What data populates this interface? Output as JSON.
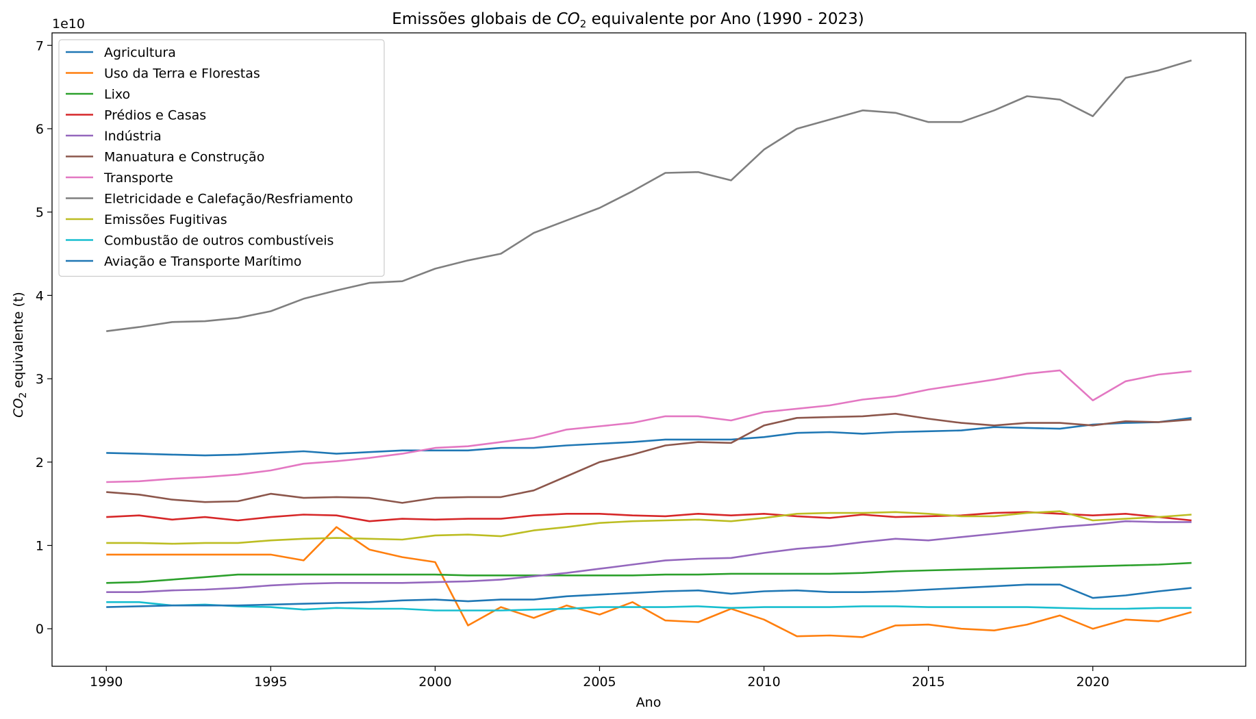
{
  "chart_data": {
    "type": "line",
    "title": "Emissões globais de CO₂ equivalente por Ano (1990 - 2023)",
    "xlabel": "Ano",
    "ylabel": "CO₂ equivalente (t)",
    "y_offset_label": "1e10",
    "xlim": [
      1988.35,
      2024.65
    ],
    "ylim": [
      -0.45,
      7.15
    ],
    "x_ticks": [
      1990,
      1995,
      2000,
      2005,
      2010,
      2015,
      2020
    ],
    "y_ticks": [
      0,
      1,
      2,
      3,
      4,
      5,
      6,
      7
    ],
    "grid": false,
    "legend_position": "upper-left",
    "x": [
      1990,
      1991,
      1992,
      1993,
      1994,
      1995,
      1996,
      1997,
      1998,
      1999,
      2000,
      2001,
      2002,
      2003,
      2004,
      2005,
      2006,
      2007,
      2008,
      2009,
      2010,
      2011,
      2012,
      2013,
      2014,
      2015,
      2016,
      2017,
      2018,
      2019,
      2020,
      2021,
      2022,
      2023
    ],
    "series": [
      {
        "name": "Agricultura",
        "color": "#1f77b4",
        "values": [
          2.11,
          2.1,
          2.09,
          2.08,
          2.09,
          2.11,
          2.13,
          2.1,
          2.12,
          2.14,
          2.14,
          2.14,
          2.17,
          2.17,
          2.2,
          2.22,
          2.24,
          2.27,
          2.27,
          2.27,
          2.3,
          2.35,
          2.36,
          2.34,
          2.36,
          2.37,
          2.38,
          2.42,
          2.41,
          2.4,
          2.45,
          2.47,
          2.48,
          2.53
        ]
      },
      {
        "name": "Uso da Terra e Florestas",
        "color": "#ff7f0e",
        "values": [
          0.89,
          0.89,
          0.89,
          0.89,
          0.89,
          0.89,
          0.82,
          1.22,
          0.95,
          0.86,
          0.8,
          0.04,
          0.26,
          0.13,
          0.28,
          0.17,
          0.32,
          0.1,
          0.08,
          0.24,
          0.11,
          -0.09,
          -0.08,
          -0.1,
          0.04,
          0.05,
          0.0,
          -0.02,
          0.05,
          0.16,
          0.0,
          0.11,
          0.09,
          0.2
        ]
      },
      {
        "name": "Lixo",
        "color": "#2ca02c",
        "values": [
          0.55,
          0.56,
          0.59,
          0.62,
          0.65,
          0.65,
          0.65,
          0.65,
          0.65,
          0.65,
          0.65,
          0.64,
          0.64,
          0.64,
          0.64,
          0.64,
          0.64,
          0.65,
          0.65,
          0.66,
          0.66,
          0.66,
          0.66,
          0.67,
          0.69,
          0.7,
          0.71,
          0.72,
          0.73,
          0.74,
          0.75,
          0.76,
          0.77,
          0.79
        ]
      },
      {
        "name": "Prédios e Casas",
        "color": "#d62728",
        "values": [
          1.34,
          1.36,
          1.31,
          1.34,
          1.3,
          1.34,
          1.37,
          1.36,
          1.29,
          1.32,
          1.31,
          1.32,
          1.32,
          1.36,
          1.38,
          1.38,
          1.36,
          1.35,
          1.38,
          1.36,
          1.38,
          1.35,
          1.33,
          1.37,
          1.34,
          1.35,
          1.36,
          1.39,
          1.4,
          1.38,
          1.36,
          1.38,
          1.34,
          1.3
        ]
      },
      {
        "name": "Indústria",
        "color": "#9467bd",
        "values": [
          0.44,
          0.44,
          0.46,
          0.47,
          0.49,
          0.52,
          0.54,
          0.55,
          0.55,
          0.55,
          0.56,
          0.57,
          0.59,
          0.63,
          0.67,
          0.72,
          0.77,
          0.82,
          0.84,
          0.85,
          0.91,
          0.96,
          0.99,
          1.04,
          1.08,
          1.06,
          1.1,
          1.14,
          1.18,
          1.22,
          1.25,
          1.29,
          1.28,
          1.28
        ]
      },
      {
        "name": "Manuatura e Construção",
        "color": "#8c564b",
        "values": [
          1.64,
          1.61,
          1.55,
          1.52,
          1.53,
          1.62,
          1.57,
          1.58,
          1.57,
          1.51,
          1.57,
          1.58,
          1.58,
          1.66,
          1.83,
          2.0,
          2.09,
          2.2,
          2.24,
          2.23,
          2.44,
          2.53,
          2.54,
          2.55,
          2.58,
          2.52,
          2.47,
          2.44,
          2.47,
          2.47,
          2.44,
          2.49,
          2.48,
          2.51
        ]
      },
      {
        "name": "Transporte",
        "color": "#e377c2",
        "values": [
          1.76,
          1.77,
          1.8,
          1.82,
          1.85,
          1.9,
          1.98,
          2.01,
          2.05,
          2.1,
          2.17,
          2.19,
          2.24,
          2.29,
          2.39,
          2.43,
          2.47,
          2.55,
          2.55,
          2.5,
          2.6,
          2.64,
          2.68,
          2.75,
          2.79,
          2.87,
          2.93,
          2.99,
          3.06,
          3.1,
          2.74,
          2.97,
          3.05,
          3.09
        ]
      },
      {
        "name": "Eletricidade e Calefação/Resfriamento",
        "color": "#7f7f7f",
        "values": [
          3.57,
          3.62,
          3.68,
          3.69,
          3.73,
          3.81,
          3.96,
          4.06,
          4.15,
          4.17,
          4.32,
          4.42,
          4.5,
          4.75,
          4.9,
          5.05,
          5.25,
          5.47,
          5.48,
          5.38,
          5.75,
          6.0,
          6.11,
          6.22,
          6.19,
          6.08,
          6.08,
          6.22,
          6.39,
          6.35,
          6.15,
          6.61,
          6.7,
          6.82
        ]
      },
      {
        "name": "Emissões Fugitivas",
        "color": "#bcbd22",
        "values": [
          1.03,
          1.03,
          1.02,
          1.03,
          1.03,
          1.06,
          1.08,
          1.09,
          1.08,
          1.07,
          1.12,
          1.13,
          1.11,
          1.18,
          1.22,
          1.27,
          1.29,
          1.3,
          1.31,
          1.29,
          1.33,
          1.38,
          1.39,
          1.39,
          1.4,
          1.38,
          1.35,
          1.35,
          1.39,
          1.41,
          1.3,
          1.32,
          1.34,
          1.37
        ]
      },
      {
        "name": "Combustão de outros combustíveis",
        "color": "#17becf",
        "values": [
          0.32,
          0.32,
          0.28,
          0.29,
          0.27,
          0.26,
          0.23,
          0.25,
          0.24,
          0.24,
          0.22,
          0.22,
          0.22,
          0.23,
          0.24,
          0.26,
          0.26,
          0.26,
          0.27,
          0.25,
          0.26,
          0.26,
          0.26,
          0.27,
          0.27,
          0.26,
          0.26,
          0.26,
          0.26,
          0.25,
          0.24,
          0.24,
          0.25,
          0.25
        ]
      },
      {
        "name": "Aviação e Transporte Marítimo",
        "color": "#1f77b4",
        "values": [
          0.26,
          0.27,
          0.28,
          0.28,
          0.28,
          0.29,
          0.3,
          0.31,
          0.32,
          0.34,
          0.35,
          0.33,
          0.35,
          0.35,
          0.39,
          0.41,
          0.43,
          0.45,
          0.46,
          0.42,
          0.45,
          0.46,
          0.44,
          0.44,
          0.45,
          0.47,
          0.49,
          0.51,
          0.53,
          0.53,
          0.37,
          0.4,
          0.45,
          0.49
        ]
      }
    ]
  }
}
